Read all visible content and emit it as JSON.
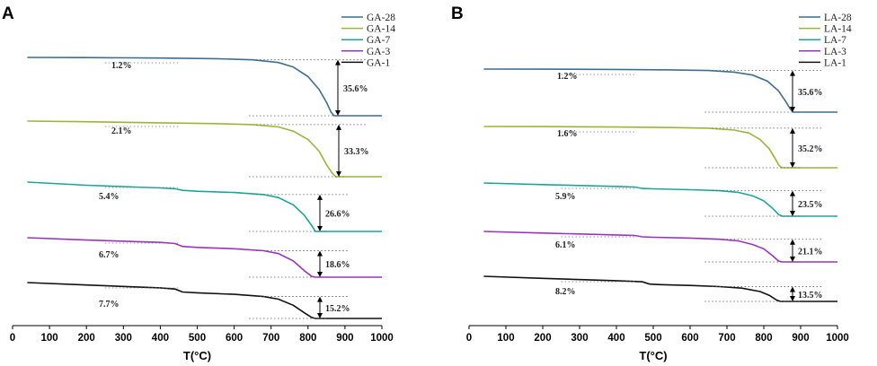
{
  "chart_data": [
    {
      "panel": "A",
      "type": "line",
      "xlabel": "T(°C)",
      "xlim": [
        0,
        1000
      ],
      "xticks": [
        0,
        100,
        200,
        300,
        400,
        500,
        600,
        700,
        800,
        900,
        1000
      ],
      "legend": [
        "GA-28",
        "GA-14",
        "GA-7",
        "GA-3",
        "GA-1"
      ],
      "colors": [
        "#3f6e8f",
        "#9bb53a",
        "#1ea59a",
        "#9a33bf",
        "#111111"
      ],
      "series": [
        {
          "name": "GA-28",
          "first_loss": "1.2%",
          "second_loss": "35.6%",
          "points": [
            [
              40,
              100
            ],
            [
              200,
              99.9
            ],
            [
              400,
              99.6
            ],
            [
              550,
              99.2
            ],
            [
              650,
              98.5
            ],
            [
              720,
              96.8
            ],
            [
              760,
              94
            ],
            [
              800,
              88
            ],
            [
              830,
              80
            ],
            [
              850,
              72
            ],
            [
              862,
              66
            ],
            [
              870,
              63.6
            ],
            [
              880,
              63.6
            ],
            [
              1000,
              63.6
            ]
          ]
        },
        {
          "name": "GA-14",
          "first_loss": "2.1%",
          "second_loss": "33.3%",
          "points": [
            [
              40,
              100
            ],
            [
              200,
              99.6
            ],
            [
              400,
              99.0
            ],
            [
              550,
              98.5
            ],
            [
              650,
              97.9
            ],
            [
              720,
              96.5
            ],
            [
              760,
              94
            ],
            [
              800,
              89
            ],
            [
              830,
              82
            ],
            [
              850,
              74
            ],
            [
              865,
              69
            ],
            [
              875,
              66.7
            ],
            [
              1000,
              66.7
            ]
          ]
        },
        {
          "name": "GA-7",
          "first_loss": "5.4%",
          "second_loss": "26.6%",
          "points": [
            [
              40,
              100
            ],
            [
              200,
              98.5
            ],
            [
              400,
              97.2
            ],
            [
              440,
              96.8
            ],
            [
              460,
              96.0
            ],
            [
              500,
              95.6
            ],
            [
              600,
              95.0
            ],
            [
              680,
              94.0
            ],
            [
              720,
              92.5
            ],
            [
              760,
              89
            ],
            [
              790,
              84
            ],
            [
              810,
              79
            ],
            [
              820,
              76.2
            ],
            [
              1000,
              76.2
            ]
          ]
        },
        {
          "name": "GA-3",
          "first_loss": "6.7%",
          "second_loss": "18.6%",
          "points": [
            [
              40,
              100
            ],
            [
              200,
              98.8
            ],
            [
              400,
              97.6
            ],
            [
              440,
              97.0
            ],
            [
              460,
              95.5
            ],
            [
              500,
              95.0
            ],
            [
              600,
              94.3
            ],
            [
              680,
              93.3
            ],
            [
              720,
              91.8
            ],
            [
              760,
              88
            ],
            [
              790,
              83
            ],
            [
              810,
              80
            ],
            [
              820,
              79.6
            ],
            [
              1000,
              79.6
            ]
          ]
        },
        {
          "name": "GA-1",
          "first_loss": "7.7%",
          "second_loss": "15.2%",
          "points": [
            [
              40,
              100
            ],
            [
              200,
              98.7
            ],
            [
              400,
              97.2
            ],
            [
              440,
              96.6
            ],
            [
              460,
              95.0
            ],
            [
              500,
              94.6
            ],
            [
              600,
              93.8
            ],
            [
              680,
              92.6
            ],
            [
              720,
              91.2
            ],
            [
              760,
              88
            ],
            [
              790,
              84
            ],
            [
              810,
              81.5
            ],
            [
              820,
              81
            ],
            [
              1000,
              81
            ]
          ]
        }
      ]
    },
    {
      "panel": "B",
      "type": "line",
      "xlabel": "T(°C)",
      "xlim": [
        0,
        1000
      ],
      "xticks": [
        0,
        100,
        200,
        300,
        400,
        500,
        600,
        700,
        800,
        900,
        1000
      ],
      "legend": [
        "LA-28",
        "LA-14",
        "LA-7",
        "LA-3",
        "LA-1"
      ],
      "colors": [
        "#3f6e8f",
        "#9bb53a",
        "#1ea59a",
        "#9a33bf",
        "#111111"
      ],
      "series": [
        {
          "name": "LA-28",
          "first_loss": "1.2%",
          "second_loss": "35.6%",
          "points": [
            [
              40,
              100
            ],
            [
              200,
              99.9
            ],
            [
              400,
              99.7
            ],
            [
              550,
              99.3
            ],
            [
              650,
              98.8
            ],
            [
              720,
              97.5
            ],
            [
              770,
              95
            ],
            [
              810,
              90
            ],
            [
              840,
              82
            ],
            [
              860,
              73
            ],
            [
              872,
              67
            ],
            [
              880,
              64.4
            ],
            [
              1000,
              64.4
            ]
          ]
        },
        {
          "name": "LA-14",
          "first_loss": "1.6%",
          "second_loss": "35.2%",
          "points": [
            [
              40,
              100
            ],
            [
              200,
              99.9
            ],
            [
              400,
              99.6
            ],
            [
              550,
              99.2
            ],
            [
              650,
              98.7
            ],
            [
              720,
              97.3
            ],
            [
              760,
              95
            ],
            [
              790,
              90
            ],
            [
              815,
              83
            ],
            [
              830,
              76
            ],
            [
              840,
              71
            ],
            [
              848,
              68.6
            ],
            [
              1000,
              68.6
            ]
          ]
        },
        {
          "name": "LA-7",
          "first_loss": "5.9%",
          "second_loss": "23.5%",
          "points": [
            [
              40,
              100
            ],
            [
              200,
              98.9
            ],
            [
              400,
              97.6
            ],
            [
              450,
              97.2
            ],
            [
              470,
              96.2
            ],
            [
              500,
              95.9
            ],
            [
              600,
              95.3
            ],
            [
              680,
              94.6
            ],
            [
              730,
              93.5
            ],
            [
              770,
              91
            ],
            [
              800,
              87.5
            ],
            [
              825,
              82
            ],
            [
              840,
              78
            ],
            [
              850,
              76.8
            ],
            [
              1000,
              76.8
            ]
          ]
        },
        {
          "name": "LA-3",
          "first_loss": "6.1%",
          "second_loss": "21.1%",
          "points": [
            [
              40,
              100
            ],
            [
              200,
              98.9
            ],
            [
              400,
              97.6
            ],
            [
              450,
              97.2
            ],
            [
              470,
              96.3
            ],
            [
              500,
              96.0
            ],
            [
              600,
              95.4
            ],
            [
              680,
              94.6
            ],
            [
              730,
              93.5
            ],
            [
              770,
              91
            ],
            [
              800,
              88
            ],
            [
              825,
              83
            ],
            [
              840,
              79.6
            ],
            [
              850,
              79
            ],
            [
              1000,
              79
            ]
          ]
        },
        {
          "name": "LA-1",
          "first_loss": "8.2%",
          "second_loss": "13.5%",
          "points": [
            [
              40,
              100
            ],
            [
              200,
              98.8
            ],
            [
              400,
              97.4
            ],
            [
              470,
              96.8
            ],
            [
              490,
              95.4
            ],
            [
              520,
              95.1
            ],
            [
              600,
              94.6
            ],
            [
              680,
              93.9
            ],
            [
              740,
              93.0
            ],
            [
              790,
              91
            ],
            [
              815,
              88.8
            ],
            [
              835,
              86
            ],
            [
              845,
              85.2
            ],
            [
              1000,
              85.2
            ]
          ]
        }
      ]
    }
  ]
}
